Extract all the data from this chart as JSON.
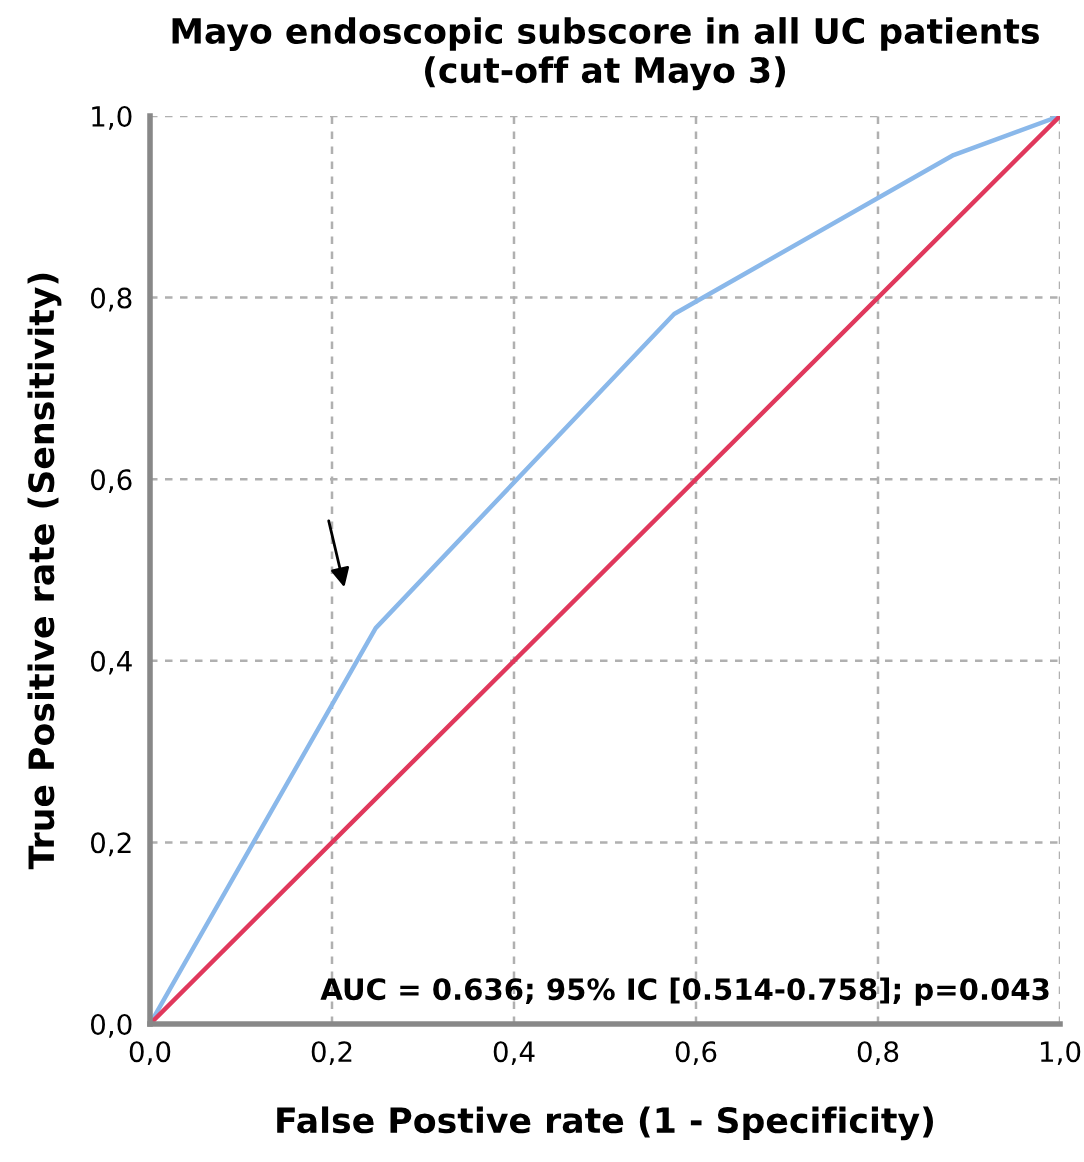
{
  "chart_data": {
    "type": "line",
    "title": "Mayo endoscopic subscore in all UC patients\n(cut-off at Mayo 3)",
    "xlabel": "False Postive rate (1 - Specificity)",
    "ylabel": "True Positive rate (Sensitivity)",
    "series": [
      {
        "color": "#8ab8ea",
        "x": [
          0,
          0.248,
          0.576,
          0.883,
          1
        ],
        "values": [
          0,
          0.436,
          0.782,
          0.957,
          1
        ]
      },
      {
        "color": "#e0385c",
        "x": [
          0,
          1
        ],
        "values": [
          0,
          1
        ]
      }
    ],
    "xlim": [
      0,
      1
    ],
    "ylim": [
      0,
      1
    ],
    "xticks": [
      {
        "value": 0,
        "label": "0,0"
      },
      {
        "value": 0.2,
        "label": "0,2"
      },
      {
        "value": 0.4,
        "label": "0,4"
      },
      {
        "value": 0.6,
        "label": "0,6"
      },
      {
        "value": 0.8,
        "label": "0,8"
      },
      {
        "value": 1,
        "label": "1,0"
      }
    ],
    "yticks": [
      {
        "value": 0,
        "label": "0,0"
      },
      {
        "value": 0.2,
        "label": "0,2"
      },
      {
        "value": 0.4,
        "label": "0,4"
      },
      {
        "value": 0.6,
        "label": "0,6"
      },
      {
        "value": 0.8,
        "label": "0,8"
      },
      {
        "value": 1,
        "label": "1,0"
      }
    ],
    "grid": true,
    "marker": "none",
    "line_style": "solid",
    "annotations": [
      "AUC = 0.636; 95% IC [0.514-0.758]; p=0.043"
    ]
  }
}
